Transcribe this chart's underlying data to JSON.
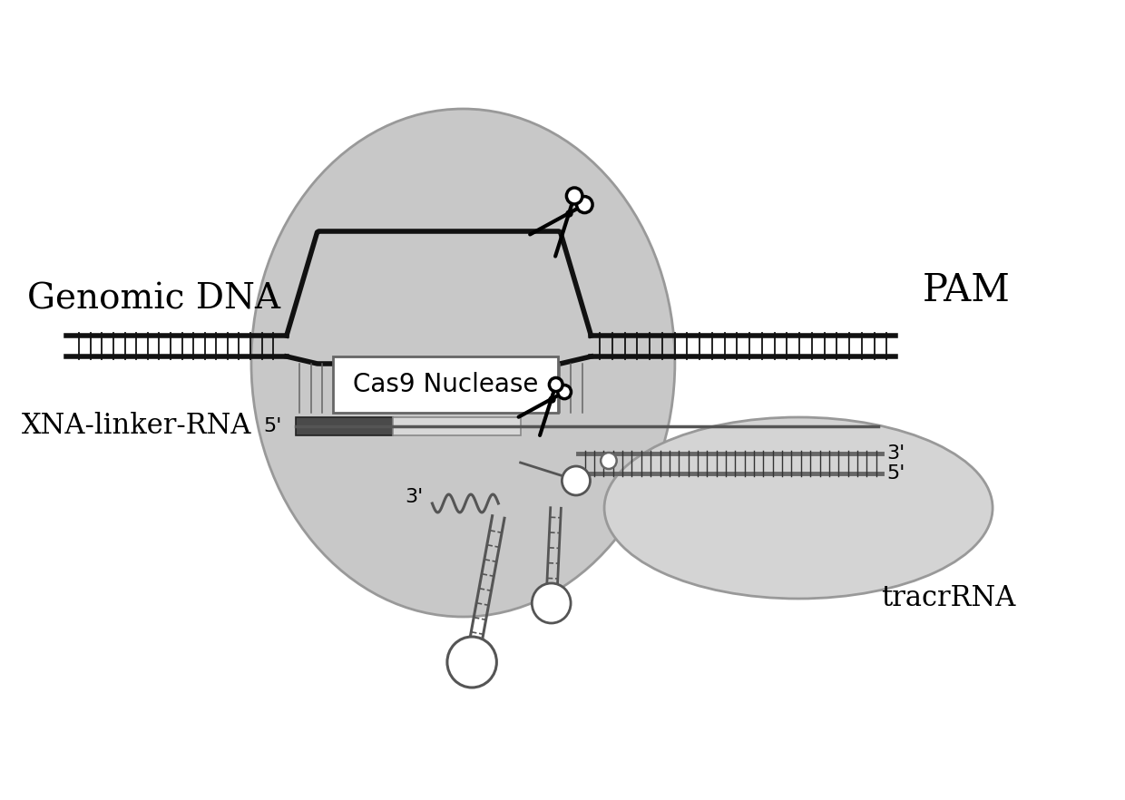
{
  "bg_color": "#ffffff",
  "blob_color": "#c8c8c8",
  "blob_edge": "#999999",
  "tracr_blob_color": "#d4d4d4",
  "dna_color": "#111111",
  "guide_dark_color": "#555555",
  "guide_light_color": "#cccccc",
  "rna_color": "#555555",
  "label_genomic_dna": "Genomic DNA",
  "label_pam": "PAM",
  "label_cas9": "Cas9 Nuclease",
  "label_xna": "XNA-linker-RNA",
  "label_tracr": "tracrRNA"
}
